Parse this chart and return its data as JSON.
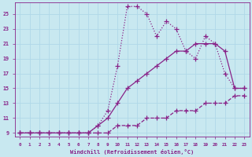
{
  "line1_x": [
    0,
    1,
    2,
    3,
    4,
    5,
    6,
    7,
    8,
    9,
    10,
    11,
    12,
    13,
    14,
    15,
    16,
    17,
    18,
    19,
    20,
    21,
    22,
    23
  ],
  "line1_y": [
    9,
    9,
    9,
    9,
    9,
    9,
    9,
    9,
    9,
    9,
    10,
    10,
    10,
    11,
    11,
    11,
    12,
    12,
    12,
    13,
    13,
    13,
    14,
    14
  ],
  "line1_style": "--",
  "line2_x": [
    0,
    1,
    2,
    3,
    4,
    5,
    6,
    7,
    8,
    9,
    10,
    11,
    12,
    13,
    14,
    15,
    16,
    17,
    18,
    19,
    20,
    21,
    22,
    23
  ],
  "line2_y": [
    9,
    9,
    9,
    9,
    9,
    9,
    9,
    9,
    10,
    11,
    13,
    15,
    16,
    17,
    18,
    19,
    20,
    20,
    21,
    21,
    21,
    20,
    15,
    15
  ],
  "line2_style": "-",
  "line3_x": [
    0,
    1,
    2,
    3,
    4,
    5,
    6,
    7,
    8,
    9,
    10,
    11,
    12,
    13,
    14,
    15,
    16,
    17,
    18,
    19,
    20,
    21,
    22,
    23
  ],
  "line3_y": [
    9,
    9,
    9,
    9,
    9,
    9,
    9,
    9,
    10,
    12,
    18,
    26,
    26,
    25,
    22,
    24,
    23,
    20,
    19,
    22,
    21,
    17,
    15,
    15
  ],
  "line3_style": "-",
  "color": "#882288",
  "bg_color": "#c8e8f0",
  "grid_color": "#b0d8e8",
  "xlabel": "Windchill (Refroidissement éolien,°C)",
  "xlim": [
    -0.5,
    23.5
  ],
  "ylim": [
    8.5,
    26.5
  ],
  "yticks": [
    9,
    11,
    13,
    15,
    17,
    19,
    21,
    23,
    25
  ],
  "xticks": [
    0,
    1,
    2,
    3,
    4,
    5,
    6,
    7,
    8,
    9,
    10,
    11,
    12,
    13,
    14,
    15,
    16,
    17,
    18,
    19,
    20,
    21,
    22,
    23
  ]
}
